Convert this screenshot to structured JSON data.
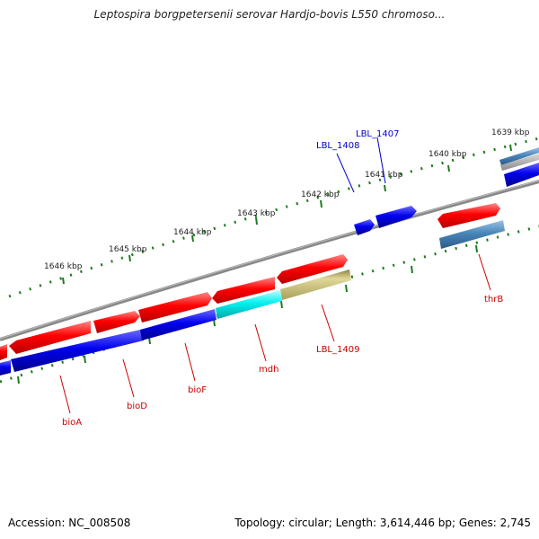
{
  "title": "Leptospira borgpetersenii serovar Hardjo-bovis L550 chromoso...",
  "footer": {
    "accession": "Accession: NC_008508",
    "summary": "Topology: circular; Length: 3,614,446 bp; Genes: 2,745"
  },
  "ticks": [
    "1646 kbp",
    "1645 kbp",
    "1644 kbp",
    "1643 kbp",
    "1642 kbp",
    "1641 kbp",
    "1640 kbp",
    "1639 kbp"
  ],
  "genes": [
    {
      "name": "bioA",
      "color": "#cc0000"
    },
    {
      "name": "bioD",
      "color": "#cc0000"
    },
    {
      "name": "bioF",
      "color": "#cc0000"
    },
    {
      "name": "mdh",
      "color": "#cc0000"
    },
    {
      "name": "LBL_1409",
      "color": "#cc0000"
    },
    {
      "name": "LBL_1408",
      "color": "#0000cc"
    },
    {
      "name": "LBL_1407",
      "color": "#0000cc"
    },
    {
      "name": "thrB",
      "color": "#cc0000"
    }
  ],
  "colors": {
    "forward": "#ff0000",
    "reverse": "#0000ee",
    "cyan": "#00f0f0",
    "olive": "#c8bf78",
    "steel": "#4a86b8",
    "backbone": "#8a8a8a",
    "tick": "#1f7a1f"
  }
}
